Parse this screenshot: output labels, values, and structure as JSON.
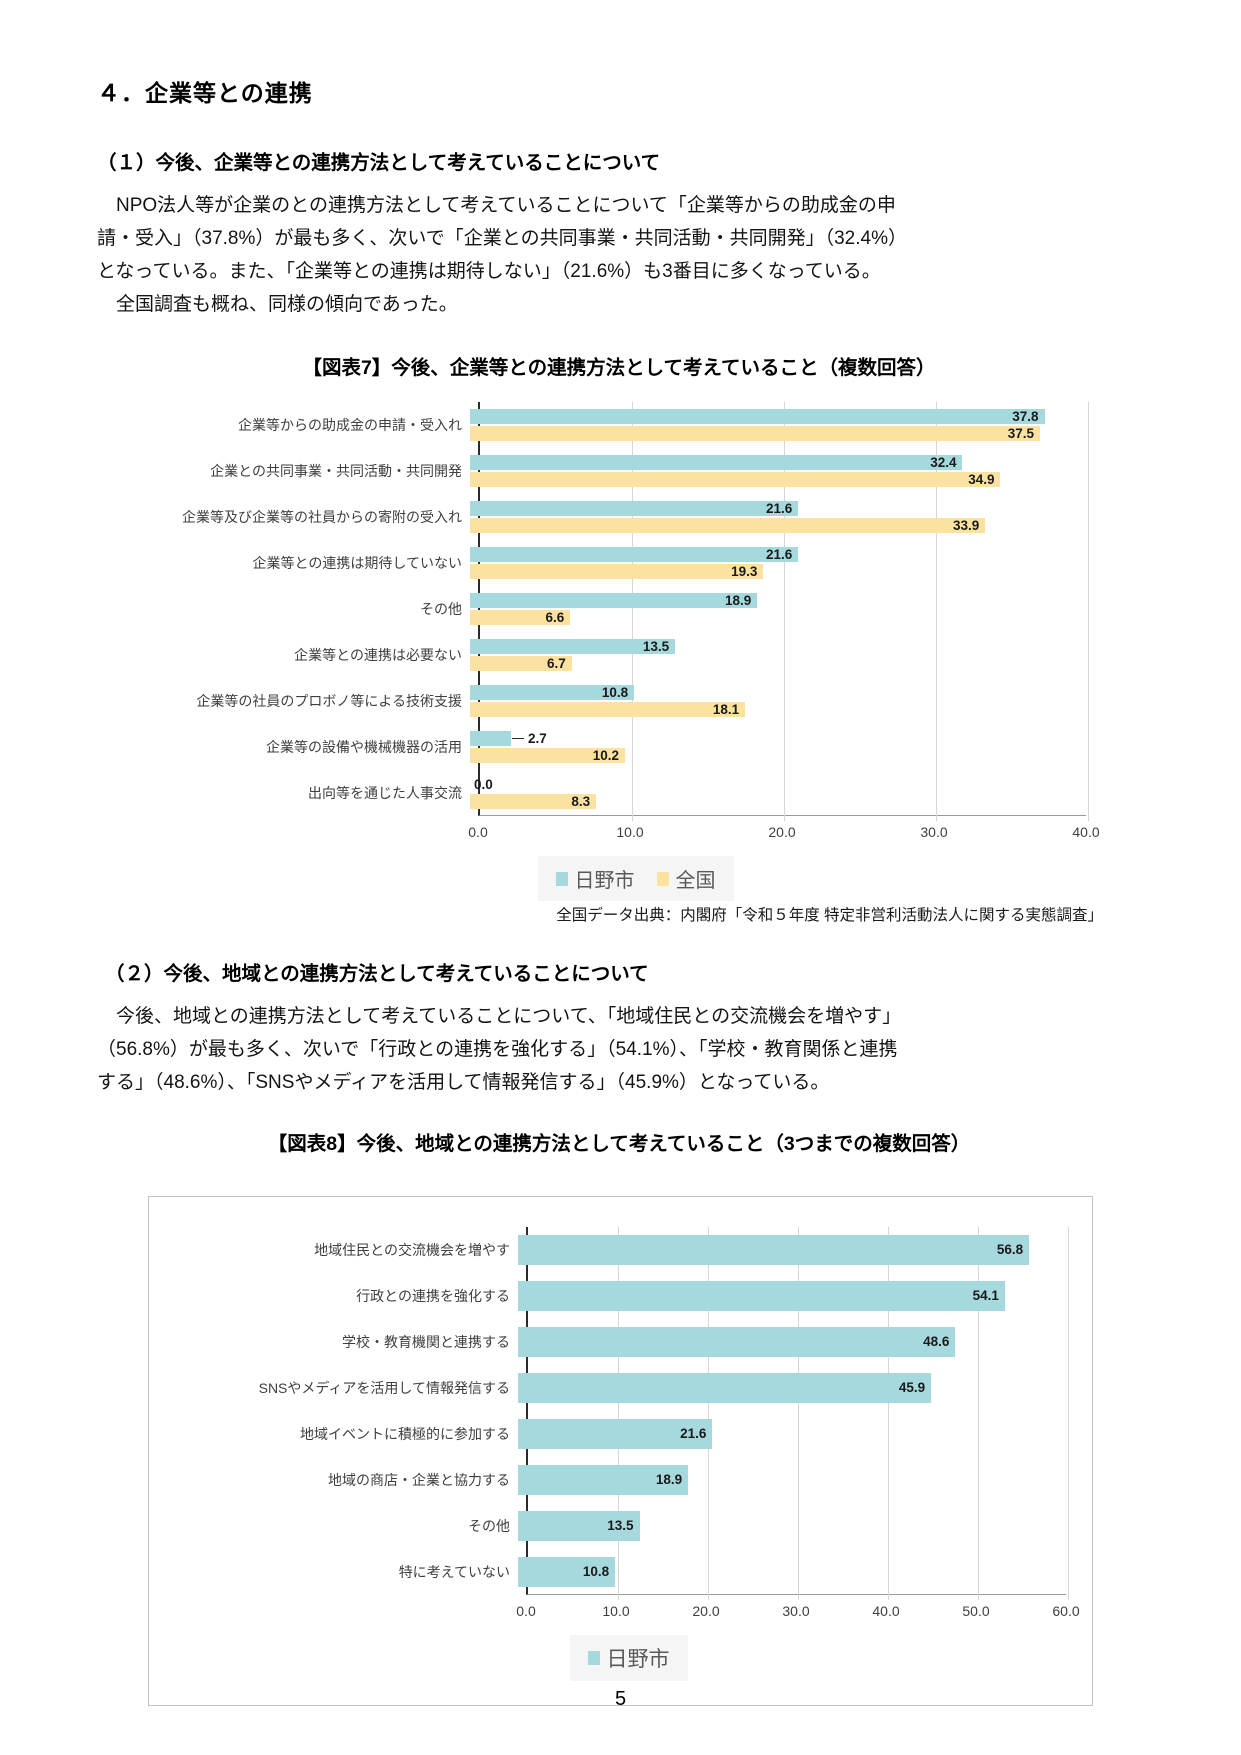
{
  "page_number": "5",
  "section_title": "４．企業等との連携",
  "section1": {
    "heading": "（１）今後、企業等との連携方法として考えていることについて",
    "body": "　NPO法人等が企業のとの連携方法として考えていることについて「企業等からの助成金の申\n請・受入」（37.8%）が最も多く、次いで「企業との共同事業・共同活動・共同開発」（32.4%）\nとなっている。また、「企業等との連携は期待しない」（21.6%）も3番目に多くなっている。\n　全国調査も概ね、同様の傾向であった。"
  },
  "figure7": {
    "title": "【図表7】今後、企業等との連携方法として考えていること（複数回答）",
    "source": "全国データ出典：内閣府「令和５年度 特定非営利活動法人に関する実態調査」"
  },
  "section2": {
    "heading": "（２）今後、地域との連携方法として考えていることについて",
    "body": "　今後、地域との連携方法として考えていることについて、「地域住民との交流機会を増やす」\n（56.8%）が最も多く、次いで「行政との連携を強化する」（54.1%）、「学校・教育関係と連携\nする」（48.6%）、「SNSやメディアを活用して情報発信する」（45.9%）となっている。"
  },
  "figure8": {
    "title": "【図表8】今後、地域との連携方法として考えていること（3つまでの複数回答）"
  },
  "colors": {
    "hino_teal": "#a6d9de",
    "zenkoku_yellow": "#fbe2a0",
    "gridline": "#d6d6d6",
    "legend_bg": "#f5f5f5"
  },
  "chart_data": [
    {
      "type": "bar",
      "orientation": "horizontal",
      "title": "【図表7】今後、企業等との連携方法として考えていること（複数回答）",
      "categories": [
        "企業等からの助成金の申請・受入れ",
        "企業との共同事業・共同活動・共同開発",
        "企業等及び企業等の社員からの寄附の受入れ",
        "企業等との連携は期待していない",
        "その他",
        "企業等との連携は必要ない",
        "企業等の社員のプロボノ等による技術支援",
        "企業等の設備や機械機器の活用",
        "出向等を通じた人事交流"
      ],
      "series": [
        {
          "name": "日野市",
          "color": "#a6d9de",
          "values": [
            37.8,
            32.4,
            21.6,
            21.6,
            18.9,
            13.5,
            10.8,
            2.7,
            0.0
          ]
        },
        {
          "name": "全国",
          "color": "#fbe2a0",
          "values": [
            37.5,
            34.9,
            33.9,
            19.3,
            6.6,
            6.7,
            18.1,
            10.2,
            8.3
          ]
        }
      ],
      "xlim": [
        0,
        40
      ],
      "xticks": [
        "0.0",
        "10.0",
        "20.0",
        "30.0",
        "40.0"
      ],
      "grid": true,
      "legend_position": "bottom",
      "source": "全国データ出典：内閣府「令和５年度 特定非営利活動法人に関する実態調査」"
    },
    {
      "type": "bar",
      "orientation": "horizontal",
      "title": "【図表8】今後、地域との連携方法として考えていること（3つまでの複数回答）",
      "categories": [
        "地域住民との交流機会を増やす",
        "行政との連携を強化する",
        "学校・教育機関と連携する",
        "SNSやメディアを活用して情報発信する",
        "地域イベントに積極的に参加する",
        "地域の商店・企業と協力する",
        "その他",
        "特に考えていない"
      ],
      "series": [
        {
          "name": "日野市",
          "color": "#a6d9de",
          "values": [
            56.8,
            54.1,
            48.6,
            45.9,
            21.6,
            18.9,
            13.5,
            10.8
          ]
        }
      ],
      "xlim": [
        0,
        60
      ],
      "xticks": [
        "0.0",
        "10.0",
        "20.0",
        "30.0",
        "40.0",
        "50.0",
        "60.0"
      ],
      "grid": true,
      "legend_position": "bottom"
    }
  ]
}
